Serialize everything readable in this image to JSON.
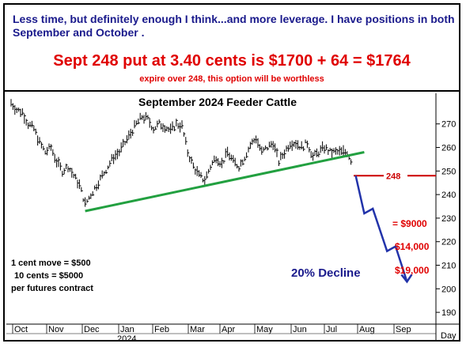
{
  "header": {
    "text": "Less time, but definitely enough I think...and more leverage. I have positions in both September and October .",
    "price_line": "Sept 248 put at 3.40 cents is $1700 + 64 = $1764",
    "note": "expire over 248, this option will be worthless"
  },
  "chart_data": {
    "type": "bar",
    "title": "September 2024 Feeder Cattle",
    "y_ticks": [
      190,
      200,
      210,
      220,
      230,
      240,
      250,
      260,
      270
    ],
    "ylim": [
      185,
      283
    ],
    "x_ticks": [
      "Oct",
      "Nov",
      "Dec",
      "Jan",
      "Feb",
      "Mar",
      "Apr",
      "May",
      "Jun",
      "Jul",
      "Aug",
      "Sep"
    ],
    "x_year_label": "2024",
    "x_unit_label": "Day",
    "grid": false,
    "price_path": [
      [
        0,
        279
      ],
      [
        1,
        276
      ],
      [
        2,
        275
      ],
      [
        3,
        270
      ],
      [
        4,
        268
      ],
      [
        5,
        262
      ],
      [
        6,
        258
      ],
      [
        7,
        260
      ],
      [
        8,
        254
      ],
      [
        9,
        250
      ],
      [
        10,
        252
      ],
      [
        11,
        248
      ],
      [
        12,
        244
      ],
      [
        13,
        236
      ],
      [
        14,
        240
      ],
      [
        15,
        244
      ],
      [
        16,
        248
      ],
      [
        17,
        252
      ],
      [
        18,
        256
      ],
      [
        19,
        258
      ],
      [
        20,
        262
      ],
      [
        21,
        266
      ],
      [
        22,
        270
      ],
      [
        23,
        273
      ],
      [
        24,
        272
      ],
      [
        25,
        268
      ],
      [
        26,
        270
      ],
      [
        27,
        269
      ],
      [
        28,
        267
      ],
      [
        29,
        270
      ],
      [
        30,
        269
      ],
      [
        31,
        258
      ],
      [
        32,
        252
      ],
      [
        33,
        248
      ],
      [
        34,
        246
      ],
      [
        35,
        252
      ],
      [
        36,
        256
      ],
      [
        37,
        253
      ],
      [
        38,
        258
      ],
      [
        39,
        254
      ],
      [
        40,
        252
      ],
      [
        41,
        256
      ],
      [
        42,
        261
      ],
      [
        43,
        264
      ],
      [
        44,
        258
      ],
      [
        45,
        260
      ],
      [
        46,
        262
      ],
      [
        47,
        254
      ],
      [
        48,
        258
      ],
      [
        49,
        262
      ],
      [
        50,
        262
      ],
      [
        51,
        260
      ],
      [
        52,
        262
      ],
      [
        53,
        256
      ],
      [
        54,
        258
      ],
      [
        55,
        260
      ],
      [
        56,
        258
      ],
      [
        57,
        258
      ],
      [
        58,
        258
      ],
      [
        59,
        258
      ],
      [
        60,
        253
      ]
    ],
    "support_line": {
      "from": [
        13,
        233
      ],
      "to": [
        62,
        258
      ]
    },
    "strike_line": {
      "label": "248",
      "value": 248
    },
    "projection_path": [
      [
        60.5,
        248
      ],
      [
        62,
        232
      ],
      [
        63.5,
        234
      ],
      [
        66,
        216
      ],
      [
        67.5,
        218
      ],
      [
        69.5,
        203
      ]
    ],
    "annotations": {
      "decline": "20% Decline",
      "price_9000": "= $9000",
      "price_14000": "$14,000",
      "price_19000": "$19,000",
      "contract_note_1": "1 cent move = $500",
      "contract_note_2": "10 cents = $5000",
      "contract_note_3": "per futures contract"
    },
    "colors": {
      "bars": "#000000",
      "support": "#22a040",
      "strike": "#cc0000",
      "projection": "#2233aa",
      "decline_text": "#1a1a8c",
      "price_text": "#e00000"
    }
  }
}
